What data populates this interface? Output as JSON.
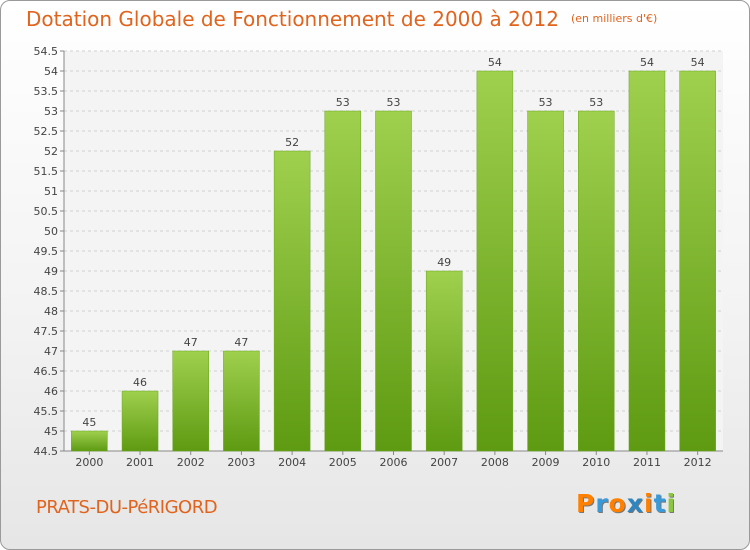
{
  "header": {
    "title": "Dotation Globale de Fonctionnement de 2000 à 2012",
    "unit": "(en milliers d'€)"
  },
  "footer": {
    "town": "PRATS-DU-PéRIGORD",
    "logo": "Proxiti"
  },
  "colors": {
    "title": "#e0641e",
    "bar_top": "#9fd04e",
    "bar_bottom": "#5e9a12",
    "logo_letters": [
      "#ff7f00",
      "#3a9ad9",
      "#ff7f00",
      "#2e86c1",
      "#ff7f00",
      "#3a9ad9",
      "#8cc63f"
    ]
  },
  "chart_data": {
    "type": "bar",
    "categories": [
      "2000",
      "2001",
      "2002",
      "2003",
      "2004",
      "2005",
      "2006",
      "2007",
      "2008",
      "2009",
      "2010",
      "2011",
      "2012"
    ],
    "values": [
      45,
      46,
      47,
      47,
      52,
      53,
      53,
      49,
      54,
      53,
      53,
      54,
      54
    ],
    "ylim": [
      44.5,
      54.5
    ],
    "yticks": [
      "44.5",
      "45",
      "45.5",
      "46",
      "46.5",
      "47",
      "47.5",
      "48",
      "48.5",
      "49",
      "49.5",
      "50",
      "50.5",
      "51",
      "51.5",
      "52",
      "52.5",
      "53",
      "53.5",
      "54",
      "54.5"
    ],
    "grid": true,
    "data_labels": true,
    "xlabel": "",
    "ylabel": ""
  }
}
